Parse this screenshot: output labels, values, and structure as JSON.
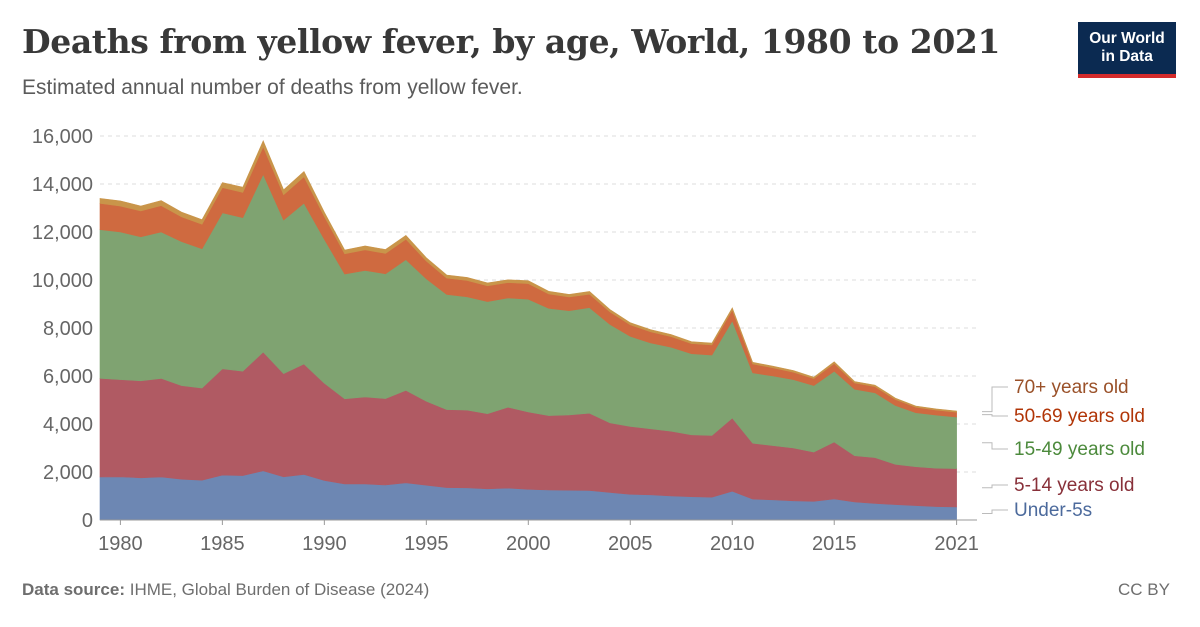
{
  "header": {
    "title": "Deaths from yellow fever, by age, World, 1980 to 2021",
    "subtitle": "Estimated annual number of deaths from yellow fever."
  },
  "logo": {
    "line1": "Our World",
    "line2": "in Data"
  },
  "footer": {
    "source_label": "Data source:",
    "source_text": "IHME, Global Burden of Disease (2024)",
    "license": "CC BY"
  },
  "chart_data": {
    "type": "area",
    "stacked": true,
    "title": "Deaths from yellow fever, by age, World, 1980 to 2021",
    "xlabel": "",
    "ylabel": "",
    "xlim": [
      1979,
      2022
    ],
    "ylim": [
      0,
      16000
    ],
    "yticks": [
      0,
      2000,
      4000,
      6000,
      8000,
      10000,
      12000,
      14000,
      16000
    ],
    "ytick_labels": [
      "0",
      "2,000",
      "4,000",
      "6,000",
      "8,000",
      "10,000",
      "12,000",
      "14,000",
      "16,000"
    ],
    "xticks": [
      1980,
      1985,
      1990,
      1995,
      2000,
      2005,
      2010,
      2015,
      2021
    ],
    "xtick_labels": [
      "1980",
      "1985",
      "1990",
      "1995",
      "2000",
      "2005",
      "2010",
      "2015",
      "2021"
    ],
    "grid": "horizontal dashed",
    "legend_placement": "right, labels at series ends",
    "x": [
      1979,
      1980,
      1981,
      1982,
      1983,
      1984,
      1985,
      1986,
      1987,
      1988,
      1989,
      1990,
      1991,
      1992,
      1993,
      1994,
      1995,
      1996,
      1997,
      1998,
      1999,
      2000,
      2001,
      2002,
      2003,
      2004,
      2005,
      2006,
      2007,
      2008,
      2009,
      2010,
      2011,
      2012,
      2013,
      2014,
      2015,
      2016,
      2017,
      2018,
      2019,
      2020,
      2021
    ],
    "series": [
      {
        "name": "Under-5s",
        "color": "#6d87b3",
        "values": [
          1790,
          1800,
          1760,
          1790,
          1700,
          1660,
          1870,
          1850,
          2050,
          1800,
          1900,
          1650,
          1500,
          1500,
          1460,
          1550,
          1450,
          1350,
          1340,
          1300,
          1330,
          1280,
          1250,
          1240,
          1230,
          1150,
          1070,
          1050,
          1000,
          970,
          950,
          1200,
          870,
          840,
          800,
          780,
          880,
          750,
          690,
          640,
          600,
          560,
          540
        ]
      },
      {
        "name": "5-14 years old",
        "color": "#b05a63",
        "values": [
          4110,
          4050,
          4040,
          4110,
          3900,
          3840,
          4430,
          4350,
          4950,
          4300,
          4600,
          4050,
          3550,
          3630,
          3600,
          3850,
          3500,
          3250,
          3240,
          3130,
          3370,
          3220,
          3100,
          3140,
          3220,
          2900,
          2830,
          2750,
          2700,
          2580,
          2570,
          3050,
          2330,
          2260,
          2200,
          2050,
          2370,
          1930,
          1910,
          1680,
          1620,
          1600,
          1600
        ]
      },
      {
        "name": "15-49 years old",
        "color": "#7fa371",
        "values": [
          6200,
          6150,
          6000,
          6100,
          6000,
          5800,
          6500,
          6400,
          7400,
          6400,
          6700,
          6000,
          5200,
          5270,
          5200,
          5450,
          5100,
          4800,
          4720,
          4670,
          4550,
          4700,
          4470,
          4340,
          4400,
          4100,
          3750,
          3580,
          3500,
          3380,
          3350,
          4050,
          2930,
          2900,
          2850,
          2770,
          2950,
          2770,
          2700,
          2450,
          2250,
          2210,
          2150
        ]
      },
      {
        "name": "50-69 years old",
        "color": "#cf6a40",
        "values": [
          1090,
          1080,
          1080,
          1100,
          1030,
          1020,
          1050,
          1050,
          1150,
          1050,
          1100,
          950,
          840,
          860,
          850,
          850,
          740,
          680,
          680,
          660,
          640,
          650,
          600,
          570,
          560,
          520,
          480,
          460,
          440,
          420,
          420,
          450,
          370,
          340,
          310,
          290,
          320,
          260,
          260,
          250,
          230,
          210,
          200
        ]
      },
      {
        "name": "70+ years old",
        "color": "#c9954a",
        "values": [
          210,
          215,
          205,
          210,
          200,
          195,
          210,
          215,
          250,
          210,
          220,
          180,
          160,
          160,
          160,
          160,
          140,
          130,
          130,
          120,
          120,
          120,
          110,
          110,
          110,
          100,
          90,
          90,
          90,
          80,
          80,
          90,
          70,
          70,
          70,
          60,
          70,
          60,
          60,
          60,
          50,
          50,
          50
        ]
      }
    ]
  }
}
